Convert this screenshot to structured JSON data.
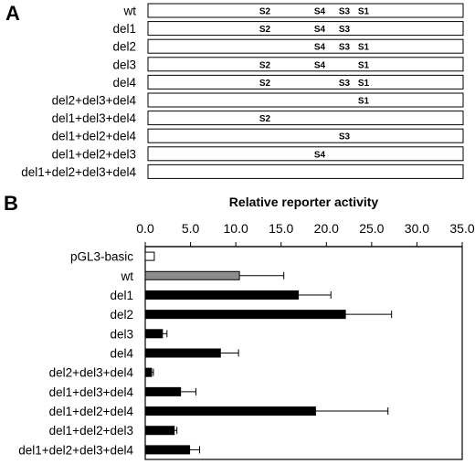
{
  "panel_a": {
    "letter": "A",
    "constructs": [
      {
        "label": "wt",
        "sites": [
          "S2",
          "S4",
          "S3",
          "S1"
        ]
      },
      {
        "label": "del1",
        "sites": [
          "S2",
          "S4",
          "S3"
        ]
      },
      {
        "label": "del2",
        "sites": [
          "S4",
          "S3",
          "S1"
        ]
      },
      {
        "label": "del3",
        "sites": [
          "S2",
          "S4",
          "S1"
        ]
      },
      {
        "label": "del4",
        "sites": [
          "S2",
          "S3",
          "S1"
        ]
      },
      {
        "label": "del2+del3+del4",
        "sites": [
          "S1"
        ]
      },
      {
        "label": "del1+del3+del4",
        "sites": [
          "S2"
        ]
      },
      {
        "label": "del1+del2+del4",
        "sites": [
          "S3"
        ]
      },
      {
        "label": "del1+del2+del3",
        "sites": [
          "S4"
        ]
      },
      {
        "label": "del1+del2+del3+del4",
        "sites": []
      }
    ]
  },
  "panel_b": {
    "letter": "B"
  },
  "chart_data": {
    "type": "bar",
    "orientation": "horizontal",
    "title": "",
    "xlabel": "Relative reporter activity",
    "ylabel": "",
    "xlim": [
      0,
      35
    ],
    "xticks": [
      "0.0",
      "5.0",
      "10.0",
      "15.0",
      "20.0",
      "25.0",
      "30.0",
      "35.0"
    ],
    "axis_position": "top",
    "grid": false,
    "categories": [
      "pGL3-basic",
      "wt",
      "del1",
      "del2",
      "del3",
      "del4",
      "del2+del3+del4",
      "del1+del3+del4",
      "del1+del2+del4",
      "del1+del2+del3",
      "del1+del2+del3+del4"
    ],
    "values": [
      1.0,
      10.4,
      16.9,
      22.1,
      1.9,
      8.3,
      0.7,
      3.9,
      18.8,
      3.2,
      4.9
    ],
    "errors": [
      0,
      4.9,
      3.6,
      5.1,
      0.5,
      2.0,
      0.2,
      1.7,
      8.0,
      0.3,
      1.1
    ],
    "colors": {
      "pGL3-basic": "#ffffff",
      "wt": "#8c8c8c",
      "default": "#000000"
    }
  }
}
